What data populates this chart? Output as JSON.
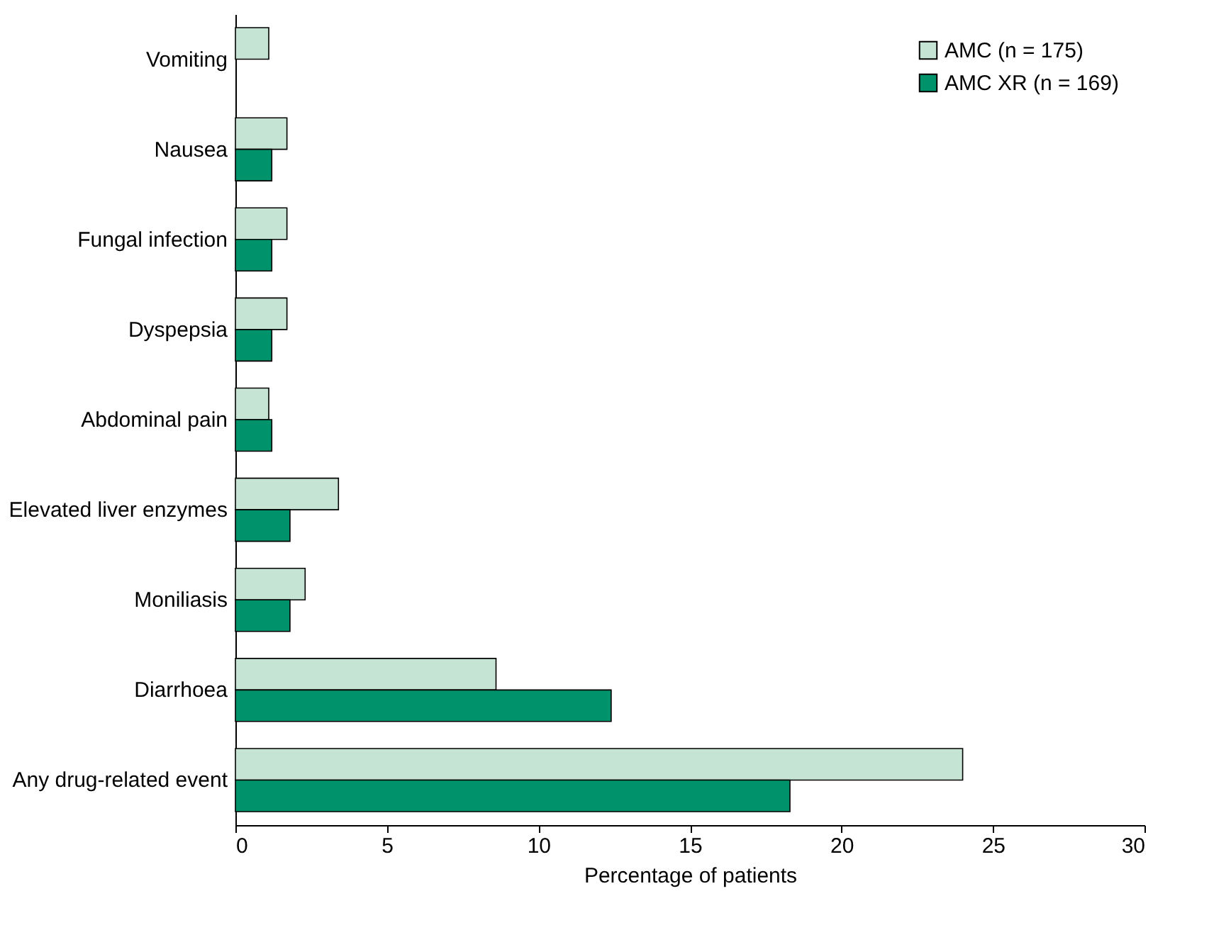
{
  "chart_data": {
    "type": "bar",
    "orientation": "horizontal",
    "xlabel": "Percentage of patients",
    "categories": [
      "Vomiting",
      "Nausea",
      "Fungal infection",
      "Dyspepsia",
      "Abdominal pain",
      "Elevated liver enzymes",
      "Moniliasis",
      "Diarrhoea",
      "Any drug-related event"
    ],
    "series": [
      {
        "name": "AMC (n = 175)",
        "color": "#c6e4d3",
        "values": [
          1.1,
          1.7,
          1.7,
          1.7,
          1.1,
          3.4,
          2.3,
          8.6,
          24.0
        ]
      },
      {
        "name": "AMC XR (n = 169)",
        "color": "#00936b",
        "values": [
          null,
          1.2,
          1.2,
          1.2,
          1.2,
          1.8,
          1.8,
          12.4,
          18.3
        ]
      }
    ],
    "xlim": [
      0,
      30
    ],
    "xticks": [
      0,
      5,
      10,
      15,
      20,
      25,
      30
    ],
    "grid": false,
    "legend": "top right"
  }
}
